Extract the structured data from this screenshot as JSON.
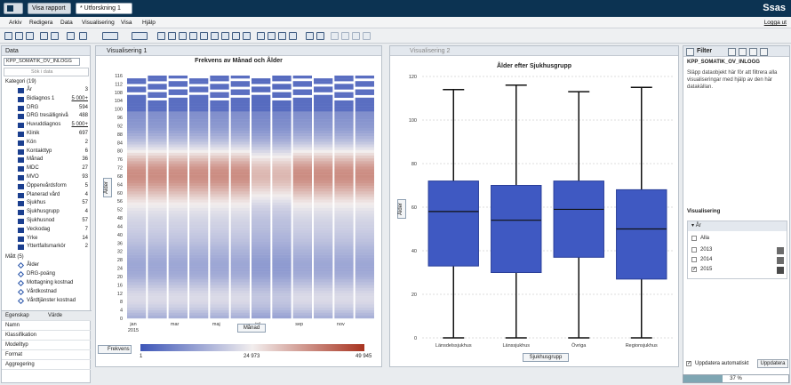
{
  "app": {
    "brand": "Ssas",
    "logout": "Logga ut"
  },
  "toolbar_tabs": {
    "view_report": "Visa rapport",
    "exploration": "* Utforskning 1"
  },
  "menu": [
    "Arkiv",
    "Redigera",
    "Data",
    "Visualisering",
    "Visa",
    "Hjälp"
  ],
  "data_panel": {
    "title": "Data",
    "source": "KPP_SOMATIK_OV_INLOGG",
    "search_placeholder": "Sök i data",
    "category_group": "Kategori (19)",
    "measure_group": "Mått (5)",
    "categories": [
      [
        "År",
        "3"
      ],
      [
        "Bidiagnos 1",
        "5 000+"
      ],
      [
        "DRG",
        "594"
      ],
      [
        "DRG tresällignivå",
        "488"
      ],
      [
        "Huvuddiagnos",
        "5 000+"
      ],
      [
        "Klinik",
        "697"
      ],
      [
        "Kön",
        "2"
      ],
      [
        "Kontakttyp",
        "6"
      ],
      [
        "Månad",
        "36"
      ],
      [
        "MDC",
        "27"
      ],
      [
        "MVO",
        "93"
      ],
      [
        "Öppenvårdsform",
        "5"
      ],
      [
        "Planerad vård",
        "4"
      ],
      [
        "Sjukhus",
        "57"
      ],
      [
        "Sjukhusgrupp",
        "4"
      ],
      [
        "Sjukhusnod",
        "57"
      ],
      [
        "Veckodag",
        "7"
      ],
      [
        "Yrke",
        "14"
      ],
      [
        "Yttertfallsmarkör",
        "2"
      ]
    ],
    "measures": [
      "Ålder",
      "DRG-poäng",
      "Mottagning kostnad",
      "Vårdkostnad",
      "Vårdtjänster kostnad"
    ]
  },
  "props": {
    "header_prop": "Egenskap",
    "header_val": "Värde",
    "rows": [
      "Namn",
      "Klassifikation",
      "Modelltyp",
      "Format",
      "Aggregering"
    ]
  },
  "viz1": {
    "tab": "Visualisering 1",
    "title": "Frekvens av Månad och Ålder",
    "ylabel": "Ålder",
    "xlabel": "Månad",
    "yticks": [
      "116",
      "112",
      "108",
      "104",
      "100",
      "96",
      "92",
      "88",
      "84",
      "80",
      "76",
      "72",
      "68",
      "64",
      "60",
      "56",
      "52",
      "48",
      "44",
      "40",
      "36",
      "32",
      "28",
      "24",
      "20",
      "16",
      "12",
      "8",
      "4",
      "0"
    ],
    "xticks": [
      "jan",
      "2015",
      "mar",
      "maj",
      "jul",
      "sep",
      "nov"
    ],
    "legend_title": "Frekvens",
    "legend_min": "1",
    "legend_mid": "24 973",
    "legend_max": "49 945",
    "colors": {
      "low": "#3d56b8",
      "mid": "#f2eeee",
      "high": "#a8331f"
    }
  },
  "viz2": {
    "tab": "Visualisering 2",
    "title": "Ålder efter Sjukhusgrupp",
    "ylabel": "Ålder",
    "xlabel": "Sjukhusgrupp",
    "yticks": [
      "120",
      "100",
      "80",
      "60",
      "40",
      "20",
      "0"
    ],
    "chart_data": {
      "type": "box",
      "categories": [
        "Länsdelssjukhus",
        "Länssjukhus",
        "Övriga",
        "Regionsjukhus"
      ],
      "min": [
        0,
        0,
        0,
        0
      ],
      "q1": [
        33,
        30,
        37,
        27
      ],
      "median": [
        58,
        54,
        59,
        50
      ],
      "q3": [
        72,
        70,
        72,
        68
      ],
      "max": [
        114,
        116,
        113,
        115
      ],
      "title": "Ålder efter Sjukhusgrupp",
      "xlabel": "Sjukhusgrupp",
      "ylabel": "Ålder",
      "ylim": [
        0,
        120
      ]
    }
  },
  "right": {
    "filter_tab": "Filter",
    "source": "KPP_SOMATIK_OV_INLOGG",
    "hint": "Släpp dataobjekt här för att filtrera alla visualiseringar med hjälp av den här datakällan.",
    "viz_label": "Visualisering",
    "year_label": "År",
    "options": [
      "Alla",
      "2013",
      "2014",
      "2015"
    ],
    "auto_update": "Uppdatera automatiskt",
    "update_btn": "Uppdatera",
    "progress_text": "37 %",
    "progress": 0.37
  }
}
